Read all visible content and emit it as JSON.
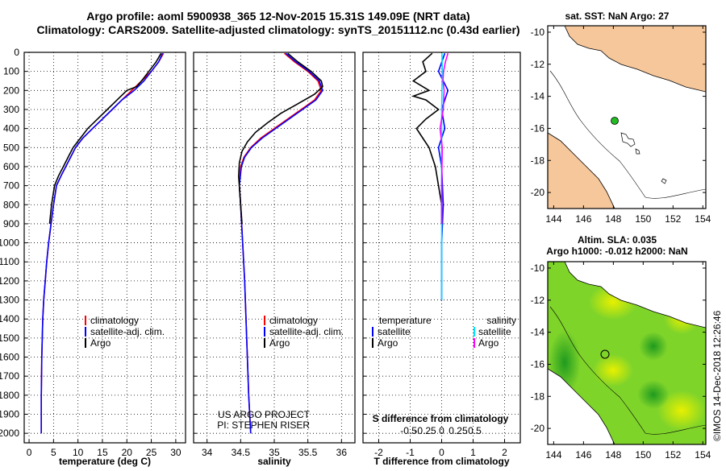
{
  "title_line1": "Argo profile: aoml 5900938_365 12-Nov-2015 15.31S 149.09E (NRT data)",
  "title_line2": "Climatology: CARS2009. Satellite-adjusted climatology: synTS_20151112.nc (0.43d earlier)",
  "colors": {
    "climatology": "#ff0000",
    "satellite": "#0000ff",
    "argo": "#000000",
    "sat_salinity": "#00e5ff",
    "argo_salinity": "#ff00ff",
    "land": "#f6c79a",
    "argo_marker": "#22bb22"
  },
  "depth_axis": {
    "ticks": [
      "0",
      "100",
      "200",
      "300",
      "400",
      "500",
      "600",
      "700",
      "800",
      "900",
      "1000",
      "1100",
      "1200",
      "1300",
      "1400",
      "1500",
      "1600",
      "1700",
      "1800",
      "1900",
      "2000"
    ]
  },
  "temp_panel": {
    "xlabel": "temperature (deg C)",
    "xticks": [
      "0",
      "5",
      "10",
      "15",
      "20",
      "25",
      "30"
    ]
  },
  "sal_panel": {
    "xlabel": "salinity",
    "xticks": [
      "34",
      "34.5",
      "35",
      "35.5",
      "36"
    ],
    "project_line1": "US ARGO PROJECT",
    "project_line2": "PI: STEPHEN RISER"
  },
  "diff_panel": {
    "xlabel": "T difference from climatology",
    "xticks": [
      "-2",
      "-1",
      "0",
      "1",
      "2"
    ],
    "s_label": "S difference from climatology",
    "s_ticks": [
      "-0.5",
      "-0.25",
      "0",
      "0.25",
      "0.5"
    ]
  },
  "legend": {
    "climatology": "climatology",
    "satellite_adj": "satellite-adj. clim.",
    "argo": "Argo"
  },
  "diff_legend": {
    "temperature": "temperature",
    "salinity": "salinity",
    "satellite": "satellite",
    "argo": "Argo"
  },
  "map1": {
    "title": "sat. SST: NaN Argo: 27",
    "yticks": [
      "-10",
      "-12",
      "-14",
      "-16",
      "-18",
      "-20"
    ],
    "xticks": [
      "144",
      "146",
      "148",
      "150",
      "152",
      "154"
    ]
  },
  "map2": {
    "title_line1": "Altim. SLA: 0.035",
    "title_line2": "Argo h1000: -0.012 h2000: NaN",
    "yticks": [
      "-10",
      "-12",
      "-14",
      "-16",
      "-18",
      "-20"
    ],
    "xticks": [
      "144",
      "146",
      "148",
      "150",
      "152",
      "154"
    ]
  },
  "credit": "©IMOS 14-Dec-2018 12:26:46",
  "chart_data": [
    {
      "type": "line",
      "xlabel": "temperature (deg C)",
      "ylabel": "",
      "xlim": [
        -1,
        32
      ],
      "ylim": [
        2050,
        0
      ],
      "series": [
        {
          "name": "climatology",
          "x": [
            27.5,
            26.5,
            25,
            23,
            21,
            19,
            17,
            15,
            13,
            11,
            9.5,
            8.5,
            7.5,
            6.5,
            5.6,
            5,
            4.5,
            4,
            3.6,
            3.3,
            3,
            2.8,
            2.6,
            2.5,
            2.5
          ],
          "y": [
            5,
            50,
            100,
            150,
            200,
            250,
            300,
            350,
            400,
            450,
            500,
            550,
            600,
            650,
            700,
            800,
            900,
            1000,
            1100,
            1200,
            1300,
            1400,
            1600,
            1800,
            2000
          ]
        },
        {
          "name": "satellite-adj. clim.",
          "x": [
            27.3,
            26.5,
            25,
            23.5,
            21.5,
            19,
            17,
            15,
            13,
            11,
            9.5,
            8.5,
            7.5,
            6.5,
            5.6,
            5,
            4.5,
            4,
            3.6,
            3.3,
            3,
            2.8,
            2.6,
            2.5,
            2.5
          ],
          "y": [
            5,
            50,
            100,
            150,
            200,
            250,
            300,
            350,
            400,
            450,
            500,
            550,
            600,
            650,
            700,
            800,
            900,
            1000,
            1100,
            1200,
            1300,
            1400,
            1600,
            1800,
            2000
          ]
        },
        {
          "name": "Argo",
          "x": [
            27,
            26,
            24.5,
            23,
            22,
            20,
            18,
            16,
            14,
            12,
            10.5,
            9,
            8,
            7,
            6,
            5.2,
            4.6,
            4.2
          ],
          "y": [
            5,
            50,
            100,
            150,
            180,
            200,
            250,
            300,
            350,
            400,
            450,
            500,
            550,
            600,
            650,
            700,
            800,
            900
          ]
        }
      ]
    },
    {
      "type": "line",
      "xlabel": "salinity",
      "ylabel": "",
      "xlim": [
        33.8,
        36.2
      ],
      "ylim": [
        2050,
        0
      ],
      "series": [
        {
          "name": "climatology",
          "x": [
            35.15,
            35.3,
            35.5,
            35.65,
            35.7,
            35.6,
            35.4,
            35.2,
            35.0,
            34.8,
            34.65,
            34.55,
            34.5,
            34.48,
            34.5,
            34.53,
            34.56,
            34.59,
            34.62,
            34.65
          ],
          "y": [
            5,
            50,
            100,
            150,
            200,
            250,
            300,
            350,
            400,
            450,
            500,
            550,
            600,
            700,
            800,
            1000,
            1200,
            1500,
            1800,
            2000
          ]
        },
        {
          "name": "satellite-adj. clim.",
          "x": [
            35.17,
            35.32,
            35.52,
            35.67,
            35.72,
            35.62,
            35.42,
            35.22,
            35.02,
            34.82,
            34.66,
            34.56,
            34.51,
            34.48,
            34.5,
            34.53,
            34.56,
            34.59,
            34.62,
            34.65
          ],
          "y": [
            5,
            50,
            100,
            150,
            200,
            250,
            300,
            350,
            400,
            450,
            500,
            550,
            600,
            700,
            800,
            1000,
            1200,
            1500,
            1800,
            2000
          ]
        },
        {
          "name": "Argo",
          "x": [
            35.2,
            35.35,
            35.55,
            35.7,
            35.72,
            35.6,
            35.35,
            35.1,
            34.9,
            34.72,
            34.6,
            34.52,
            34.48,
            34.47,
            34.49,
            34.52
          ],
          "y": [
            5,
            50,
            100,
            150,
            180,
            220,
            270,
            320,
            370,
            420,
            470,
            520,
            580,
            650,
            750,
            900
          ]
        }
      ]
    },
    {
      "type": "line",
      "xlabel": "T difference from climatology",
      "ylabel": "",
      "xlim": [
        -2.5,
        2.5
      ],
      "ylim": [
        2050,
        0
      ],
      "series": [
        {
          "name": "temperature satellite",
          "x": [
            0.1,
            -0.1,
            0.2,
            0,
            0.1,
            -0.1,
            0,
            0.05,
            0,
            0
          ],
          "y": [
            5,
            100,
            200,
            300,
            400,
            500,
            600,
            800,
            1000,
            1300
          ]
        },
        {
          "name": "temperature Argo",
          "x": [
            -0.3,
            -0.6,
            -0.5,
            -0.9,
            -0.4,
            -0.9,
            -0.5,
            -0.1,
            -0.5,
            -0.8,
            -0.6,
            -0.4,
            -0.2,
            -0.1,
            0,
            0
          ],
          "y": [
            5,
            50,
            100,
            150,
            200,
            230,
            250,
            300,
            350,
            400,
            450,
            500,
            600,
            700,
            800,
            900
          ]
        },
        {
          "name": "salinity satellite",
          "x": [
            0.01,
            0.02,
            0.01,
            0,
            0,
            0,
            0,
            0
          ],
          "y": [
            5,
            100,
            200,
            300,
            500,
            800,
            1000,
            1300
          ]
        },
        {
          "name": "salinity Argo",
          "x": [
            0.2,
            0.12,
            0.06,
            0.04,
            0.08,
            0.05,
            -0.05,
            0.02,
            0,
            0
          ],
          "y": [
            5,
            50,
            100,
            150,
            200,
            300,
            400,
            500,
            700,
            900
          ]
        }
      ]
    }
  ]
}
